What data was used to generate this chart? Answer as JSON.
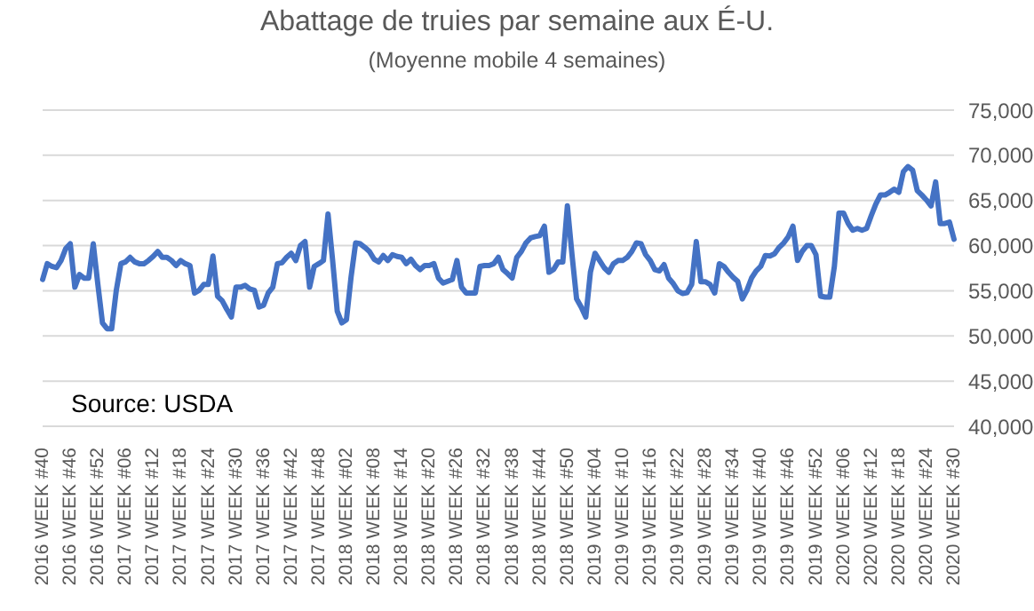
{
  "chart_data": {
    "type": "line",
    "title": "Abattage de truies par semaine aux É-U.",
    "subtitle": "(Moyenne mobile 4 semaines)",
    "categories": [
      "2016 WEEK #40",
      null,
      null,
      null,
      null,
      null,
      "2016 WEEK #46",
      null,
      null,
      null,
      null,
      null,
      "2016 WEEK #52",
      null,
      null,
      null,
      null,
      null,
      "2017 WEEK #06",
      null,
      null,
      null,
      null,
      null,
      "2017 WEEK #12",
      null,
      null,
      null,
      null,
      null,
      "2017 WEEK #18",
      null,
      null,
      null,
      null,
      null,
      "2017 WEEK #24",
      null,
      null,
      null,
      null,
      null,
      "2017 WEEK #30",
      null,
      null,
      null,
      null,
      null,
      "2017 WEEK #36",
      null,
      null,
      null,
      null,
      null,
      "2017 WEEK #42",
      null,
      null,
      null,
      null,
      null,
      "2017 WEEK #48",
      null,
      null,
      null,
      null,
      null,
      "2018 WEEK #02",
      null,
      null,
      null,
      null,
      null,
      "2018 WEEK #08",
      null,
      null,
      null,
      null,
      null,
      "2018 WEEK #14",
      null,
      null,
      null,
      null,
      null,
      "2018 WEEK #20",
      null,
      null,
      null,
      null,
      null,
      "2018 WEEK #26",
      null,
      null,
      null,
      null,
      null,
      "2018 WEEK #32",
      null,
      null,
      null,
      null,
      null,
      "2018 WEEK #38",
      null,
      null,
      null,
      null,
      null,
      "2018 WEEK #44",
      null,
      null,
      null,
      null,
      null,
      "2018 WEEK #50",
      null,
      null,
      null,
      null,
      null,
      "2019 WEEK #04",
      null,
      null,
      null,
      null,
      null,
      "2019 WEEK #10",
      null,
      null,
      null,
      null,
      null,
      "2019 WEEK #16",
      null,
      null,
      null,
      null,
      null,
      "2019 WEEK #22",
      null,
      null,
      null,
      null,
      null,
      "2019 WEEK #28",
      null,
      null,
      null,
      null,
      null,
      "2019 WEEK #34",
      null,
      null,
      null,
      null,
      null,
      "2019 WEEK #40",
      null,
      null,
      null,
      null,
      null,
      "2019 WEEK #46",
      null,
      null,
      null,
      null,
      null,
      "2019 WEEK #52",
      null,
      null,
      null,
      null,
      null,
      "2020 WEEK #06",
      null,
      null,
      null,
      null,
      null,
      "2020 WEEK #12",
      null,
      null,
      null,
      null,
      null,
      "2020 WEEK #18",
      null,
      null,
      null,
      null,
      null,
      "2020 WEEK #24",
      null,
      null,
      null,
      null,
      null,
      "2020 WEEK #30"
    ],
    "values": [
      56250,
      58000,
      57700,
      57550,
      58350,
      59650,
      60200,
      55400,
      56800,
      56400,
      56400,
      60200,
      55700,
      51450,
      50800,
      50800,
      55050,
      58000,
      58200,
      58700,
      58200,
      58000,
      58000,
      58350,
      58800,
      59350,
      58700,
      58700,
      58350,
      57800,
      58350,
      58000,
      57800,
      54750,
      55050,
      55700,
      55700,
      58850,
      54400,
      53900,
      52950,
      52100,
      55400,
      55400,
      55600,
      55200,
      55050,
      53200,
      53400,
      54750,
      55400,
      58000,
      58100,
      58700,
      59150,
      58350,
      60000,
      60450,
      55400,
      57700,
      58000,
      58350,
      63500,
      58350,
      52750,
      51450,
      51800,
      56500,
      60300,
      60200,
      59800,
      59350,
      58500,
      58200,
      58900,
      58350,
      59000,
      58800,
      58700,
      58000,
      58500,
      57800,
      57350,
      57800,
      57800,
      58000,
      56400,
      55850,
      56050,
      56250,
      58350,
      55400,
      54750,
      54750,
      54750,
      57700,
      57800,
      57800,
      58000,
      58700,
      57350,
      56900,
      56400,
      58700,
      59350,
      60300,
      60850,
      61000,
      61100,
      62150,
      57050,
      57350,
      58200,
      58200,
      64400,
      59000,
      54100,
      53200,
      52100,
      57050,
      59150,
      58350,
      57550,
      57050,
      58000,
      58350,
      58350,
      58700,
      59350,
      60300,
      60200,
      59000,
      58350,
      57350,
      57200,
      57900,
      56400,
      55800,
      55000,
      54700,
      54800,
      55700,
      60450,
      56000,
      56000,
      55700,
      54750,
      58000,
      57700,
      57050,
      56500,
      56050,
      54100,
      55050,
      56400,
      57200,
      57700,
      58900,
      58850,
      59100,
      59800,
      60300,
      61000,
      62150,
      58350,
      59350,
      60000,
      60000,
      59000,
      54400,
      54300,
      54300,
      57700,
      63600,
      63600,
      62450,
      61700,
      61900,
      61700,
      61900,
      63300,
      64600,
      65600,
      65600,
      65900,
      66250,
      65900,
      68200,
      68750,
      68350,
      66100,
      65600,
      65050,
      64400,
      67050,
      62450,
      62450,
      62600,
      60700
    ],
    "color": "#4472c4",
    "ylim": [
      40000,
      75000
    ],
    "yticks": [
      {
        "value": 40000,
        "label": "40,000"
      },
      {
        "value": 45000,
        "label": "45,000"
      },
      {
        "value": 50000,
        "label": "50,000"
      },
      {
        "value": 55000,
        "label": "55,000"
      },
      {
        "value": 60000,
        "label": "60,000"
      },
      {
        "value": 65000,
        "label": "65,000"
      },
      {
        "value": 70000,
        "label": "70,000"
      },
      {
        "value": 75000,
        "label": "75,000"
      }
    ],
    "grid": "y",
    "annotations": [
      "Source: USDA"
    ]
  }
}
